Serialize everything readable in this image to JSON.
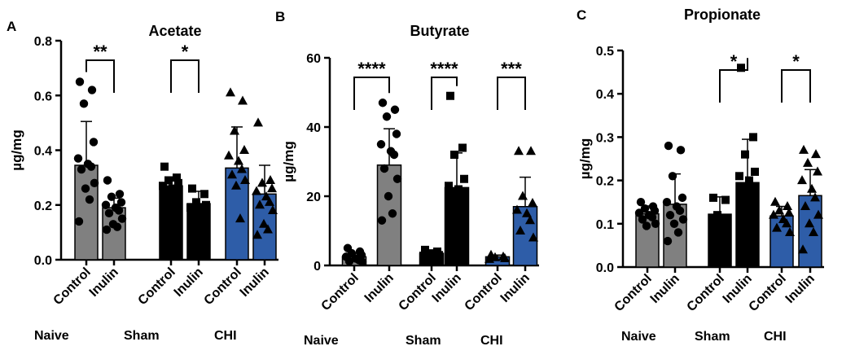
{
  "chart_data": [
    {
      "panel": "A",
      "type": "bar",
      "title": "Acetate",
      "ylabel": "µg/mg",
      "ylim": [
        0,
        0.8
      ],
      "yticks": [
        "0.0",
        "0.2",
        "0.4",
        "0.6",
        "0.8"
      ],
      "groups": [
        "Naive",
        "Sham",
        "CHI"
      ],
      "categories": [
        "Control",
        "Inulin",
        "Control",
        "Inulin",
        "Control",
        "Inulin"
      ],
      "bars": [
        {
          "group": "Naive",
          "category": "Control",
          "mean": 0.345,
          "sd": 0.16,
          "color": "#808080",
          "marker": "circle",
          "points": [
            0.65,
            0.62,
            0.57,
            0.43,
            0.37,
            0.35,
            0.34,
            0.33,
            0.28,
            0.26,
            0.22,
            0.14
          ]
        },
        {
          "group": "Naive",
          "category": "Inulin",
          "mean": 0.19,
          "sd": 0.035,
          "color": "#808080",
          "marker": "circle",
          "points": [
            0.29,
            0.24,
            0.23,
            0.21,
            0.2,
            0.19,
            0.18,
            0.17,
            0.15,
            0.13,
            0.12,
            0.11
          ]
        },
        {
          "group": "Sham",
          "category": "Control",
          "mean": 0.27,
          "sd": 0.03,
          "color": "#000000",
          "marker": "square",
          "points": [
            0.34,
            0.3,
            0.29,
            0.28,
            0.27,
            0.26,
            0.25,
            0.24
          ]
        },
        {
          "group": "Sham",
          "category": "Inulin",
          "mean": 0.205,
          "sd": 0.045,
          "color": "#000000",
          "marker": "square",
          "points": [
            0.26,
            0.24,
            0.21,
            0.2,
            0.19
          ]
        },
        {
          "group": "CHI",
          "category": "Control",
          "mean": 0.335,
          "sd": 0.15,
          "color": "#2e5da8",
          "marker": "triangle",
          "points": [
            0.61,
            0.58,
            0.47,
            0.4,
            0.38,
            0.36,
            0.33,
            0.31,
            0.29,
            0.27,
            0.15
          ]
        },
        {
          "group": "CHI",
          "category": "Inulin",
          "mean": 0.24,
          "sd": 0.105,
          "color": "#2e5da8",
          "marker": "triangle",
          "points": [
            0.5,
            0.29,
            0.28,
            0.26,
            0.25,
            0.23,
            0.21,
            0.2,
            0.18,
            0.13,
            0.11,
            0.09
          ]
        }
      ],
      "significance": [
        {
          "pair": [
            0,
            1
          ],
          "label": "**"
        },
        {
          "pair": [
            2,
            3
          ],
          "label": "*"
        }
      ]
    },
    {
      "panel": "B",
      "type": "bar",
      "title": "Butyrate",
      "ylabel": "µg/mg",
      "ylim": [
        0,
        60
      ],
      "yticks": [
        "0",
        "20",
        "40",
        "60"
      ],
      "groups": [
        "Naive",
        "Sham",
        "CHI"
      ],
      "categories": [
        "Control",
        "Inulin",
        "Control",
        "Inulin",
        "Control",
        "Inulin"
      ],
      "bars": [
        {
          "group": "Naive",
          "category": "Control",
          "mean": 2.5,
          "sd": 1.0,
          "color": "#808080",
          "marker": "circle",
          "points": [
            5,
            4,
            3.5,
            3,
            2.5,
            2,
            1.5,
            1.2,
            1
          ]
        },
        {
          "group": "Naive",
          "category": "Inulin",
          "mean": 29,
          "sd": 10.5,
          "color": "#808080",
          "marker": "circle",
          "points": [
            47,
            45,
            43,
            38,
            35,
            33,
            32,
            28,
            25,
            20,
            15,
            13
          ]
        },
        {
          "group": "Sham",
          "category": "Control",
          "mean": 3.5,
          "sd": 0.6,
          "color": "#000000",
          "marker": "square",
          "points": [
            4.5,
            4,
            3.5,
            3,
            2.8
          ]
        },
        {
          "group": "Sham",
          "category": "Inulin",
          "mean": 22.5,
          "sd": 10,
          "color": "#000000",
          "marker": "square",
          "points": [
            49,
            34,
            32,
            25,
            23,
            22,
            21
          ]
        },
        {
          "group": "CHI",
          "category": "Control",
          "mean": 2.5,
          "sd": 0.5,
          "color": "#2e5da8",
          "marker": "triangle",
          "points": [
            3,
            2.5,
            2.3,
            2,
            1.8
          ]
        },
        {
          "group": "CHI",
          "category": "Inulin",
          "mean": 17,
          "sd": 8.5,
          "color": "#2e5da8",
          "marker": "triangle",
          "points": [
            33,
            33,
            20,
            18,
            16,
            15,
            13,
            10,
            8
          ]
        }
      ],
      "significance": [
        {
          "pair": [
            0,
            1
          ],
          "label": "****"
        },
        {
          "pair": [
            2,
            3
          ],
          "label": "****"
        },
        {
          "pair": [
            4,
            5
          ],
          "label": "***"
        }
      ]
    },
    {
      "panel": "C",
      "type": "bar",
      "title": "Propionate",
      "ylabel": "µg/mg",
      "ylim": [
        0,
        0.5
      ],
      "yticks": [
        "0.0",
        "0.1",
        "0.2",
        "0.3",
        "0.4",
        "0.5"
      ],
      "groups": [
        "Naive",
        "Sham",
        "CHI"
      ],
      "categories": [
        "Control",
        "Inulin",
        "Control",
        "Inulin",
        "Control",
        "Inulin"
      ],
      "bars": [
        {
          "group": "Naive",
          "category": "Control",
          "mean": 0.123,
          "sd": 0.018,
          "color": "#808080",
          "marker": "circle",
          "points": [
            0.15,
            0.14,
            0.135,
            0.13,
            0.125,
            0.12,
            0.115,
            0.11,
            0.1,
            0.095
          ]
        },
        {
          "group": "Naive",
          "category": "Inulin",
          "mean": 0.145,
          "sd": 0.07,
          "color": "#808080",
          "marker": "circle",
          "points": [
            0.28,
            0.27,
            0.21,
            0.16,
            0.15,
            0.14,
            0.13,
            0.12,
            0.11,
            0.1,
            0.08,
            0.06
          ]
        },
        {
          "group": "Sham",
          "category": "Control",
          "mean": 0.122,
          "sd": 0.04,
          "color": "#000000",
          "marker": "square",
          "points": [
            0.16,
            0.155,
            0.12,
            0.1
          ]
        },
        {
          "group": "Sham",
          "category": "Inulin",
          "mean": 0.195,
          "sd": 0.1,
          "color": "#000000",
          "marker": "square",
          "points": [
            0.46,
            0.3,
            0.26,
            0.22,
            0.21,
            0.2
          ]
        },
        {
          "group": "CHI",
          "category": "Control",
          "mean": 0.118,
          "sd": 0.022,
          "color": "#2e5da8",
          "marker": "triangle",
          "points": [
            0.15,
            0.14,
            0.13,
            0.125,
            0.12,
            0.11,
            0.1,
            0.09,
            0.08
          ]
        },
        {
          "group": "CHI",
          "category": "Inulin",
          "mean": 0.165,
          "sd": 0.06,
          "color": "#2e5da8",
          "marker": "triangle",
          "points": [
            0.27,
            0.26,
            0.24,
            0.22,
            0.2,
            0.18,
            0.16,
            0.14,
            0.12,
            0.1,
            0.08,
            0.04
          ]
        }
      ],
      "significance": [
        {
          "pair": [
            2,
            3
          ],
          "label": "*"
        },
        {
          "pair": [
            4,
            5
          ],
          "label": "*"
        }
      ]
    }
  ]
}
